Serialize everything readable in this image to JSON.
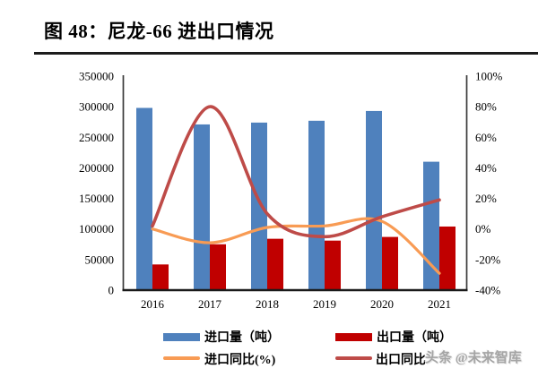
{
  "title": "图 48：尼龙-66 进出口情况",
  "watermark": "头条 @未来智库",
  "colors": {
    "import_bar": "#4F81BD",
    "export_bar": "#C00000",
    "import_yoy_line": "#F89B54",
    "export_yoy_line": "#BE4B48",
    "axis_line": "#3a3a3a",
    "baseline": "#1a1a1a",
    "text": "#000000"
  },
  "legend": [
    {
      "label": "进口量（吨）",
      "type": "bar",
      "color_key": "import_bar"
    },
    {
      "label": "出口量（吨）",
      "type": "bar",
      "color_key": "export_bar"
    },
    {
      "label": "进口同比(%)",
      "type": "line",
      "color_key": "import_yoy_line"
    },
    {
      "label": "出口同比",
      "type": "line",
      "color_key": "export_yoy_line"
    }
  ],
  "chart_data": {
    "type": "bar",
    "subtype": "bar+line dual-axis combo",
    "categories": [
      "2016",
      "2017",
      "2018",
      "2019",
      "2020",
      "2021"
    ],
    "series": [
      {
        "name": "进口量（吨）",
        "type": "bar",
        "axis": "left",
        "color_key": "import_bar",
        "values": [
          298000,
          271000,
          274000,
          277000,
          293000,
          210000
        ]
      },
      {
        "name": "出口量（吨）",
        "type": "bar",
        "axis": "left",
        "color_key": "export_bar",
        "values": [
          42000,
          75000,
          84000,
          81000,
          87000,
          104000
        ]
      },
      {
        "name": "进口同比(%)",
        "type": "line",
        "axis": "right",
        "color_key": "import_yoy_line",
        "values": [
          0,
          -9,
          1,
          2,
          5,
          -29
        ]
      },
      {
        "name": "出口同比",
        "type": "line",
        "axis": "right",
        "color_key": "export_yoy_line",
        "values": [
          2,
          80,
          10,
          -5,
          8,
          19
        ]
      }
    ],
    "left_axis": {
      "min": 0,
      "max": 350000,
      "step": 50000,
      "tick_labels": [
        "0",
        "50000",
        "100000",
        "150000",
        "200000",
        "250000",
        "300000",
        "350000"
      ]
    },
    "right_axis": {
      "min": -40,
      "max": 100,
      "step": 20,
      "tick_labels": [
        "-40%",
        "-20%",
        "0%",
        "20%",
        "40%",
        "60%",
        "80%",
        "100%"
      ]
    },
    "grid": false,
    "legend_position": "bottom"
  }
}
